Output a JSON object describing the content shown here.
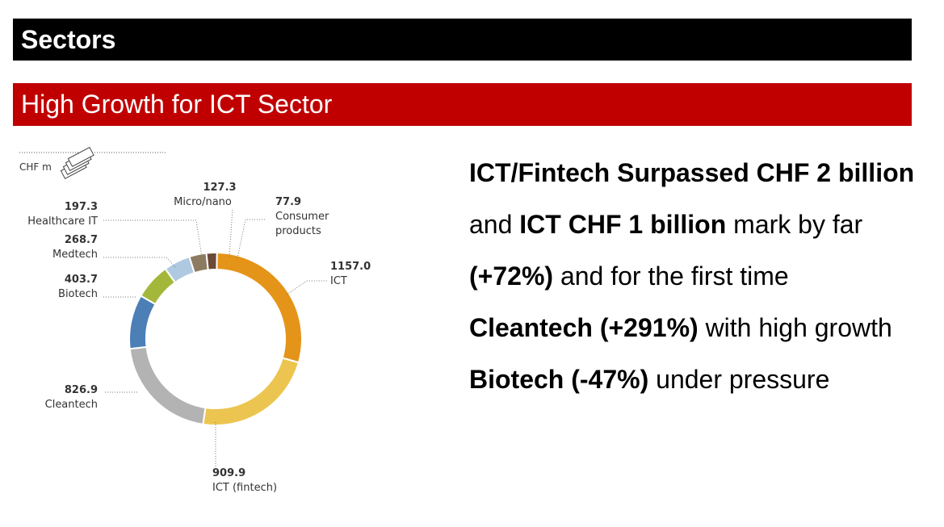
{
  "header": {
    "title": "Sectors"
  },
  "subheader": {
    "title": "High Growth for ICT Sector"
  },
  "chart_data": {
    "type": "pie",
    "unit_label": "CHF m",
    "slices": [
      {
        "label": "ICT",
        "value": 1157.0,
        "value_text": "1157.0",
        "color": "#e49418"
      },
      {
        "label": "ICT (fintech)",
        "value": 909.9,
        "value_text": "909.9",
        "color": "#ecc550"
      },
      {
        "label": "Cleantech",
        "value": 826.9,
        "value_text": "826.9",
        "color": "#b3b3b3"
      },
      {
        "label": "Biotech",
        "value": 403.7,
        "value_text": "403.7",
        "color": "#4c7fb6"
      },
      {
        "label": "Medtech",
        "value": 268.7,
        "value_text": "268.7",
        "color": "#a3b83a"
      },
      {
        "label": "Healthcare IT",
        "value": 197.3,
        "value_text": "197.3",
        "color": "#afc9e1"
      },
      {
        "label": "Micro/nano",
        "value": 127.3,
        "value_text": "127.3",
        "color": "#8d7b61"
      },
      {
        "label": "Consumer products",
        "value": 77.9,
        "value_text": "77.9",
        "color": "#6b4a37"
      }
    ]
  },
  "text": {
    "p1": {
      "b1": "ICT/Fintech Surpassed CHF 2 billion",
      "t1": " and ",
      "b2": "ICT CHF 1 billion",
      "t2": " mark by far ",
      "b3": "(+72%)",
      "t3": " and for the first time"
    },
    "p2": {
      "b1": "Cleantech (+291%)",
      "t1": " with high growth"
    },
    "p3": {
      "b1": "Biotech (-47%)",
      "t1": " under pressure"
    }
  }
}
